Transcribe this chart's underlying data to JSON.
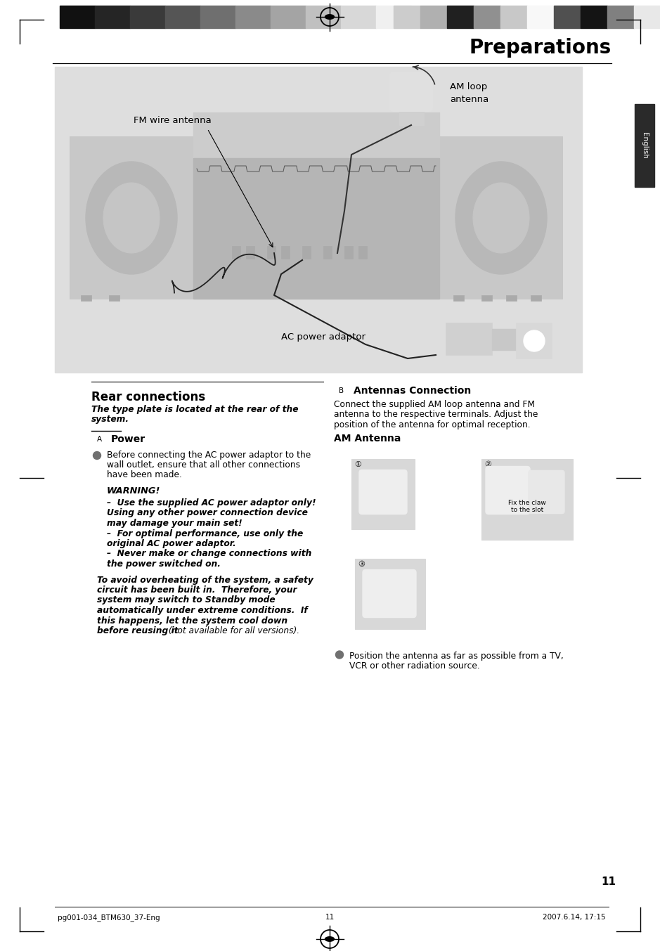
{
  "page_bg": "#ffffff",
  "title": "Preparations",
  "page_number": "11",
  "footer_left": "pg001-034_BTM630_37-Eng",
  "footer_center": "11",
  "footer_right": "2007.6.14, 17:15",
  "tab_label": "English",
  "section_title": "Rear connections",
  "section_italic_line1": "The type plate is located at the rear of the",
  "section_italic_line2": "system.",
  "label_A": "A",
  "label_B": "B",
  "subsection_A_title": "Power",
  "bullet_A1_line1": "Before connecting the AC power adaptor to the",
  "bullet_A1_line2": "wall outlet, ensure that all other connections",
  "bullet_A1_line3": "have been made.",
  "warning_title": "WARNING!",
  "warning_line1": "–  Use the supplied AC power adaptor only!",
  "warning_line2": "Using any other power connection device",
  "warning_line3": "may damage your main set!",
  "warning_line4": "–  For optimal performance, use only the",
  "warning_line5": "original AC power adaptor.",
  "warning_line6": "–  Never make or change connections with",
  "warning_line7": "the power switched on.",
  "overheat_line1": "To avoid overheating of the system, a safety",
  "overheat_line2": "circuit has been built in.  Therefore, your",
  "overheat_line3": "system may switch to Standby mode",
  "overheat_line4": "automatically under extreme conditions.  If",
  "overheat_line5": "this happens, let the system cool down",
  "overheat_line6": "before reusing it",
  "overheat_suffix": " (not available for all versions).",
  "subsection_B_title": "Antennas Connection",
  "subsect_B_line1": "Connect the supplied AM loop antenna and FM",
  "subsect_B_line2": "antenna to the respective terminals. Adjust the",
  "subsect_B_line3": "position of the antenna for optimal reception.",
  "subsection_AM_title": "AM Antenna",
  "bullet_B1_line1": "Position the antenna as far as possible from a TV,",
  "bullet_B1_line2": "VCR or other radiation source.",
  "diagram_label_FM": "FM wire antenna",
  "diagram_label_AM_1": "AM loop",
  "diagram_label_AM_2": "antenna",
  "diagram_label_AC": "AC power adaptor",
  "image_bg": "#dedede",
  "header_colors_left": [
    "#111111",
    "#252525",
    "#3a3a3a",
    "#555555",
    "#6f6f6f",
    "#8a8a8a",
    "#a4a4a4",
    "#c0c0c0",
    "#d8d8d8",
    "#f0f0f0"
  ],
  "header_colors_right": [
    "#cccccc",
    "#b0b0b0",
    "#202020",
    "#909090",
    "#c8c8c8",
    "#f8f8f8",
    "#505050",
    "#141414",
    "#808080",
    "#e8e8e8"
  ]
}
